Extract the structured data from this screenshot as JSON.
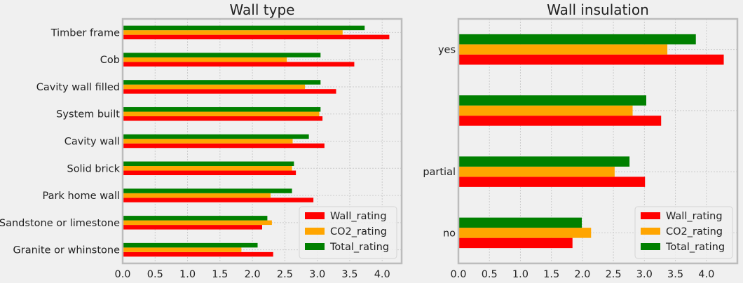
{
  "chart_data": [
    {
      "type": "bar",
      "orientation": "horizontal",
      "title": "Wall type",
      "categories": [
        "Granite or whinstone",
        "Sandstone or limestone",
        "Park home wall",
        "Solid brick",
        "Cavity wall",
        "System built",
        "Cavity wall filled",
        "Cob",
        "Timber frame"
      ],
      "series": [
        {
          "name": "Wall_rating",
          "color": "#ff0000",
          "values": [
            2.32,
            2.15,
            2.94,
            2.67,
            3.11,
            3.08,
            3.29,
            3.57,
            4.11
          ]
        },
        {
          "name": "CO2_rating",
          "color": "#ffa500",
          "values": [
            1.83,
            2.3,
            2.28,
            2.61,
            2.62,
            3.03,
            2.81,
            2.53,
            3.39
          ]
        },
        {
          "name": "Total_rating",
          "color": "#008000",
          "values": [
            2.08,
            2.23,
            2.61,
            2.64,
            2.87,
            3.05,
            3.05,
            3.05,
            3.73
          ]
        }
      ],
      "xlim": [
        0,
        4.3
      ],
      "xticks": [
        "0.0",
        "0.5",
        "1.0",
        "1.5",
        "2.0",
        "2.5",
        "3.0",
        "3.5",
        "4.0"
      ],
      "grid": true,
      "legend": "bottom-right"
    },
    {
      "type": "bar",
      "orientation": "horizontal",
      "title": "Wall insulation",
      "categories": [
        "no",
        "partial",
        "",
        "yes"
      ],
      "series": [
        {
          "name": "Wall_rating",
          "color": "#ff0000",
          "values": [
            1.84,
            3.01,
            3.27,
            4.28
          ]
        },
        {
          "name": "CO2_rating",
          "color": "#ffa500",
          "values": [
            2.14,
            2.52,
            2.81,
            3.37
          ]
        },
        {
          "name": "Total_rating",
          "color": "#008000",
          "values": [
            1.99,
            2.76,
            3.03,
            3.83
          ]
        }
      ],
      "xlim": [
        0,
        4.5
      ],
      "xticks": [
        "0.0",
        "0.5",
        "1.0",
        "1.5",
        "2.0",
        "2.5",
        "3.0",
        "3.5",
        "4.0"
      ],
      "grid": true,
      "legend": "bottom-right"
    }
  ]
}
